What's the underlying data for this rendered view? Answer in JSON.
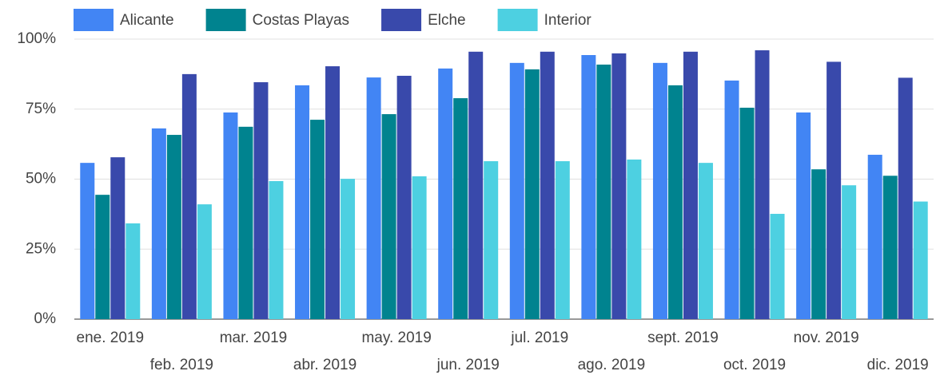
{
  "chart_data": {
    "type": "bar",
    "categories": [
      "ene. 2019",
      "feb. 2019",
      "mar. 2019",
      "abr. 2019",
      "may. 2019",
      "jun. 2019",
      "jul. 2019",
      "ago. 2019",
      "sept. 2019",
      "oct. 2019",
      "nov. 2019",
      "dic. 2019"
    ],
    "series": [
      {
        "name": "Alicante",
        "color": "#4285f4",
        "values": [
          55.8,
          68.1,
          73.8,
          83.5,
          86.3,
          89.5,
          91.5,
          94.3,
          91.5,
          85.2,
          73.8,
          58.7
        ]
      },
      {
        "name": "Costas Playas",
        "color": "#00838f",
        "values": [
          44.4,
          65.8,
          68.7,
          71.2,
          73.2,
          78.9,
          89.2,
          90.9,
          83.5,
          75.5,
          53.5,
          51.2
        ]
      },
      {
        "name": "Elche",
        "color": "#3949ab",
        "values": [
          57.8,
          87.5,
          84.6,
          90.3,
          86.9,
          95.5,
          95.5,
          94.9,
          95.5,
          96.0,
          91.9,
          86.2
        ]
      },
      {
        "name": "Interior",
        "color": "#4dd0e1",
        "values": [
          34.2,
          41.0,
          49.3,
          50.1,
          51.0,
          56.4,
          56.4,
          57.0,
          55.8,
          37.6,
          47.8,
          42.0
        ]
      }
    ],
    "ylim": [
      0,
      100
    ],
    "yticks": [
      {
        "value": 0,
        "label": "0%"
      },
      {
        "value": 25,
        "label": "25%"
      },
      {
        "value": 50,
        "label": "50%"
      },
      {
        "value": 75,
        "label": "75%"
      },
      {
        "value": 100,
        "label": "100%"
      }
    ],
    "grid": true,
    "legend": "top"
  }
}
